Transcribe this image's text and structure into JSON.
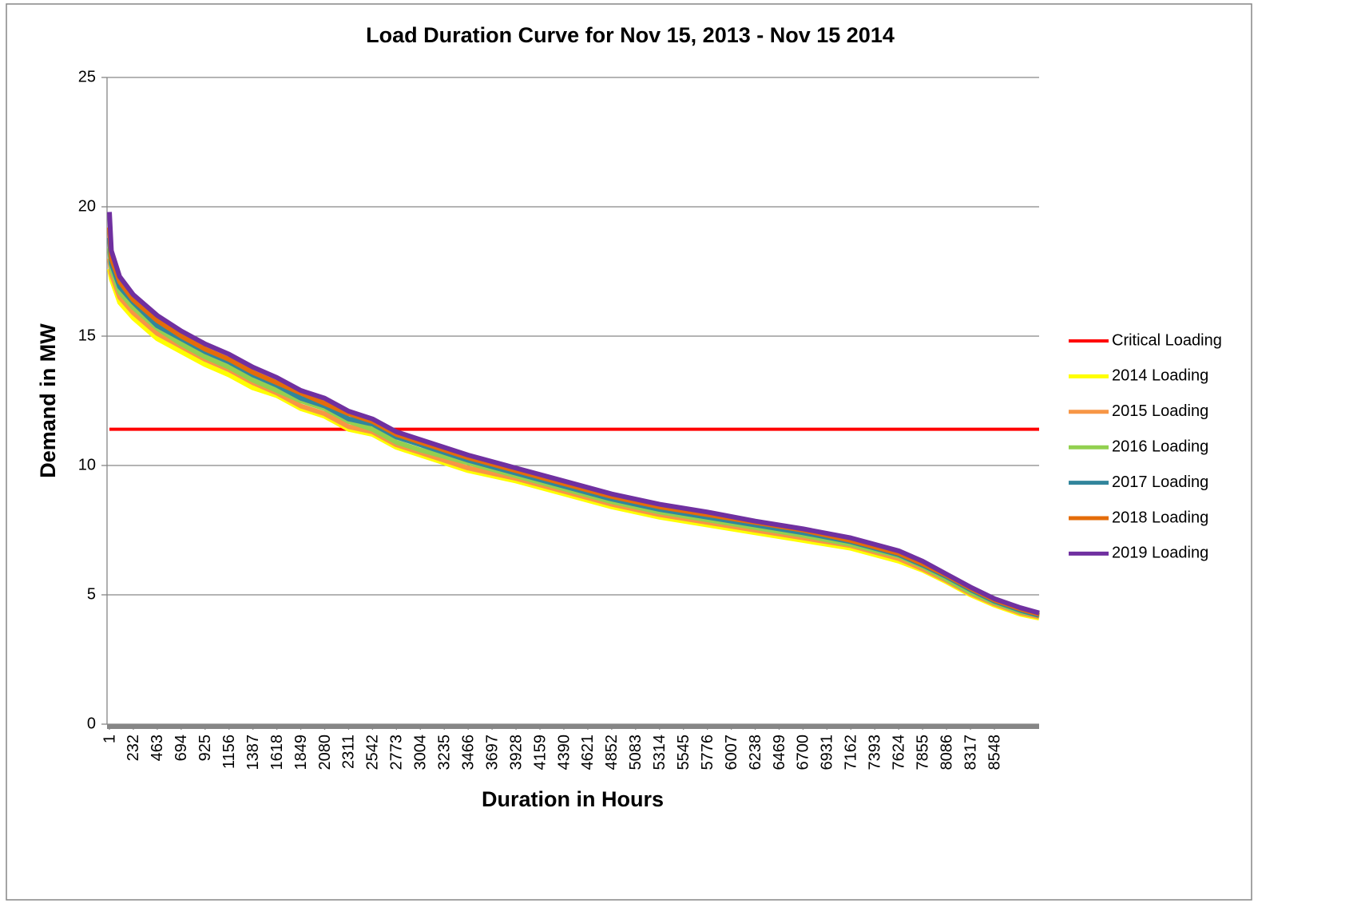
{
  "chart_data": {
    "type": "line",
    "title": "Load Duration Curve for Nov 15, 2013 - Nov 15 2014",
    "x_label": "Duration in Hours",
    "y_label": "Demand in MW",
    "x": [
      1,
      20,
      100,
      232,
      463,
      694,
      925,
      1156,
      1387,
      1618,
      1849,
      2080,
      2311,
      2542,
      2773,
      3004,
      3466,
      3928,
      4390,
      4852,
      5314,
      5776,
      6238,
      6700,
      7162,
      7624,
      7855,
      8086,
      8317,
      8548,
      8800,
      8980
    ],
    "xlim": [
      1,
      8980
    ],
    "xticks": [
      1,
      232,
      463,
      694,
      925,
      1156,
      1387,
      1618,
      1849,
      2080,
      2311,
      2542,
      2773,
      3004,
      3235,
      3466,
      3697,
      3928,
      4159,
      4390,
      4621,
      4852,
      5083,
      5314,
      5545,
      5776,
      6007,
      6238,
      6469,
      6700,
      6931,
      7162,
      7393,
      7624,
      7855,
      8086,
      8317,
      8548
    ],
    "ylim": [
      0,
      25
    ],
    "yticks": [
      0,
      5,
      10,
      15,
      20,
      25
    ],
    "grid": true,
    "legend": "right",
    "series": [
      {
        "name": "Critical Loading",
        "color": "#ff0000",
        "x": [
          1,
          8980
        ],
        "values": [
          11.4,
          11.4
        ]
      },
      {
        "name": "2014 Loading",
        "color": "#ffff00",
        "values": [
          17.6,
          17.2,
          16.3,
          15.7,
          14.9,
          14.4,
          13.9,
          13.5,
          13.0,
          12.7,
          12.2,
          11.9,
          11.4,
          11.2,
          10.7,
          10.4,
          9.8,
          9.4,
          8.9,
          8.4,
          8.0,
          7.7,
          7.4,
          7.1,
          6.8,
          6.3,
          5.95,
          5.5,
          5.0,
          4.6,
          4.25,
          4.1
        ]
      },
      {
        "name": "2015 Loading",
        "color": "#f79646",
        "values": [
          18.0,
          17.4,
          16.5,
          15.9,
          15.1,
          14.6,
          14.1,
          13.7,
          13.2,
          12.8,
          12.3,
          12.0,
          11.5,
          11.3,
          10.8,
          10.5,
          9.9,
          9.5,
          9.0,
          8.5,
          8.1,
          7.8,
          7.5,
          7.2,
          6.9,
          6.4,
          6.0,
          5.55,
          5.05,
          4.65,
          4.3,
          4.15
        ]
      },
      {
        "name": "2016 Loading",
        "color": "#92d050",
        "values": [
          18.4,
          17.6,
          16.7,
          16.1,
          15.3,
          14.7,
          14.2,
          13.8,
          13.3,
          12.9,
          12.5,
          12.2,
          11.7,
          11.4,
          10.9,
          10.6,
          10.1,
          9.6,
          9.1,
          8.6,
          8.2,
          7.9,
          7.6,
          7.3,
          6.95,
          6.5,
          6.1,
          5.6,
          5.1,
          4.7,
          4.35,
          4.2
        ]
      },
      {
        "name": "2017 Loading",
        "color": "#31859c",
        "values": [
          18.8,
          17.8,
          16.9,
          16.3,
          15.4,
          14.9,
          14.4,
          14.0,
          13.5,
          13.1,
          12.6,
          12.3,
          11.8,
          11.6,
          11.1,
          10.8,
          10.2,
          9.7,
          9.2,
          8.7,
          8.3,
          8.0,
          7.7,
          7.4,
          7.05,
          6.55,
          6.15,
          5.7,
          5.2,
          4.75,
          4.4,
          4.2
        ]
      },
      {
        "name": "2018 Loading",
        "color": "#e46c0a",
        "values": [
          19.2,
          18.0,
          17.1,
          16.4,
          15.6,
          15.0,
          14.5,
          14.1,
          13.6,
          13.2,
          12.8,
          12.4,
          12.0,
          11.7,
          11.2,
          10.9,
          10.3,
          9.8,
          9.3,
          8.8,
          8.4,
          8.1,
          7.8,
          7.5,
          7.1,
          6.6,
          6.2,
          5.75,
          5.25,
          4.8,
          4.45,
          4.25
        ]
      },
      {
        "name": "2019 Loading",
        "color": "#7030a0",
        "values": [
          19.8,
          18.3,
          17.3,
          16.6,
          15.8,
          15.2,
          14.7,
          14.3,
          13.8,
          13.4,
          12.9,
          12.6,
          12.1,
          11.8,
          11.3,
          11.0,
          10.4,
          9.9,
          9.4,
          8.9,
          8.5,
          8.2,
          7.85,
          7.55,
          7.2,
          6.7,
          6.3,
          5.8,
          5.3,
          4.85,
          4.5,
          4.3
        ]
      }
    ]
  }
}
